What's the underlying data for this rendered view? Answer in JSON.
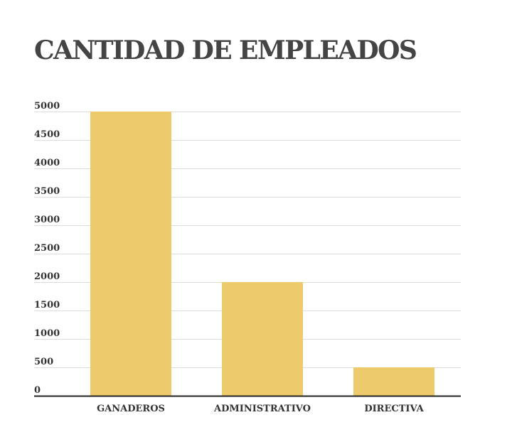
{
  "colors": {
    "bar": "#EDCA6B",
    "grid": "#DDDDDD",
    "axis": "#222222",
    "text": "#333333",
    "title": "#444444"
  },
  "chart_data": {
    "type": "bar",
    "title": "CANTIDAD DE EMPLEADOS",
    "xlabel": "",
    "ylabel": "",
    "categories": [
      "GANADEROS",
      "ADMINISTRATIVO",
      "DIRECTIVA"
    ],
    "values": [
      5000,
      2000,
      500
    ],
    "ylim": [
      0,
      5000
    ],
    "yticks": [
      "0",
      "500",
      "1000",
      "1500",
      "2000",
      "2500",
      "3000",
      "3500",
      "4000",
      "4500",
      "5000"
    ],
    "grid": true,
    "legend": "none"
  }
}
